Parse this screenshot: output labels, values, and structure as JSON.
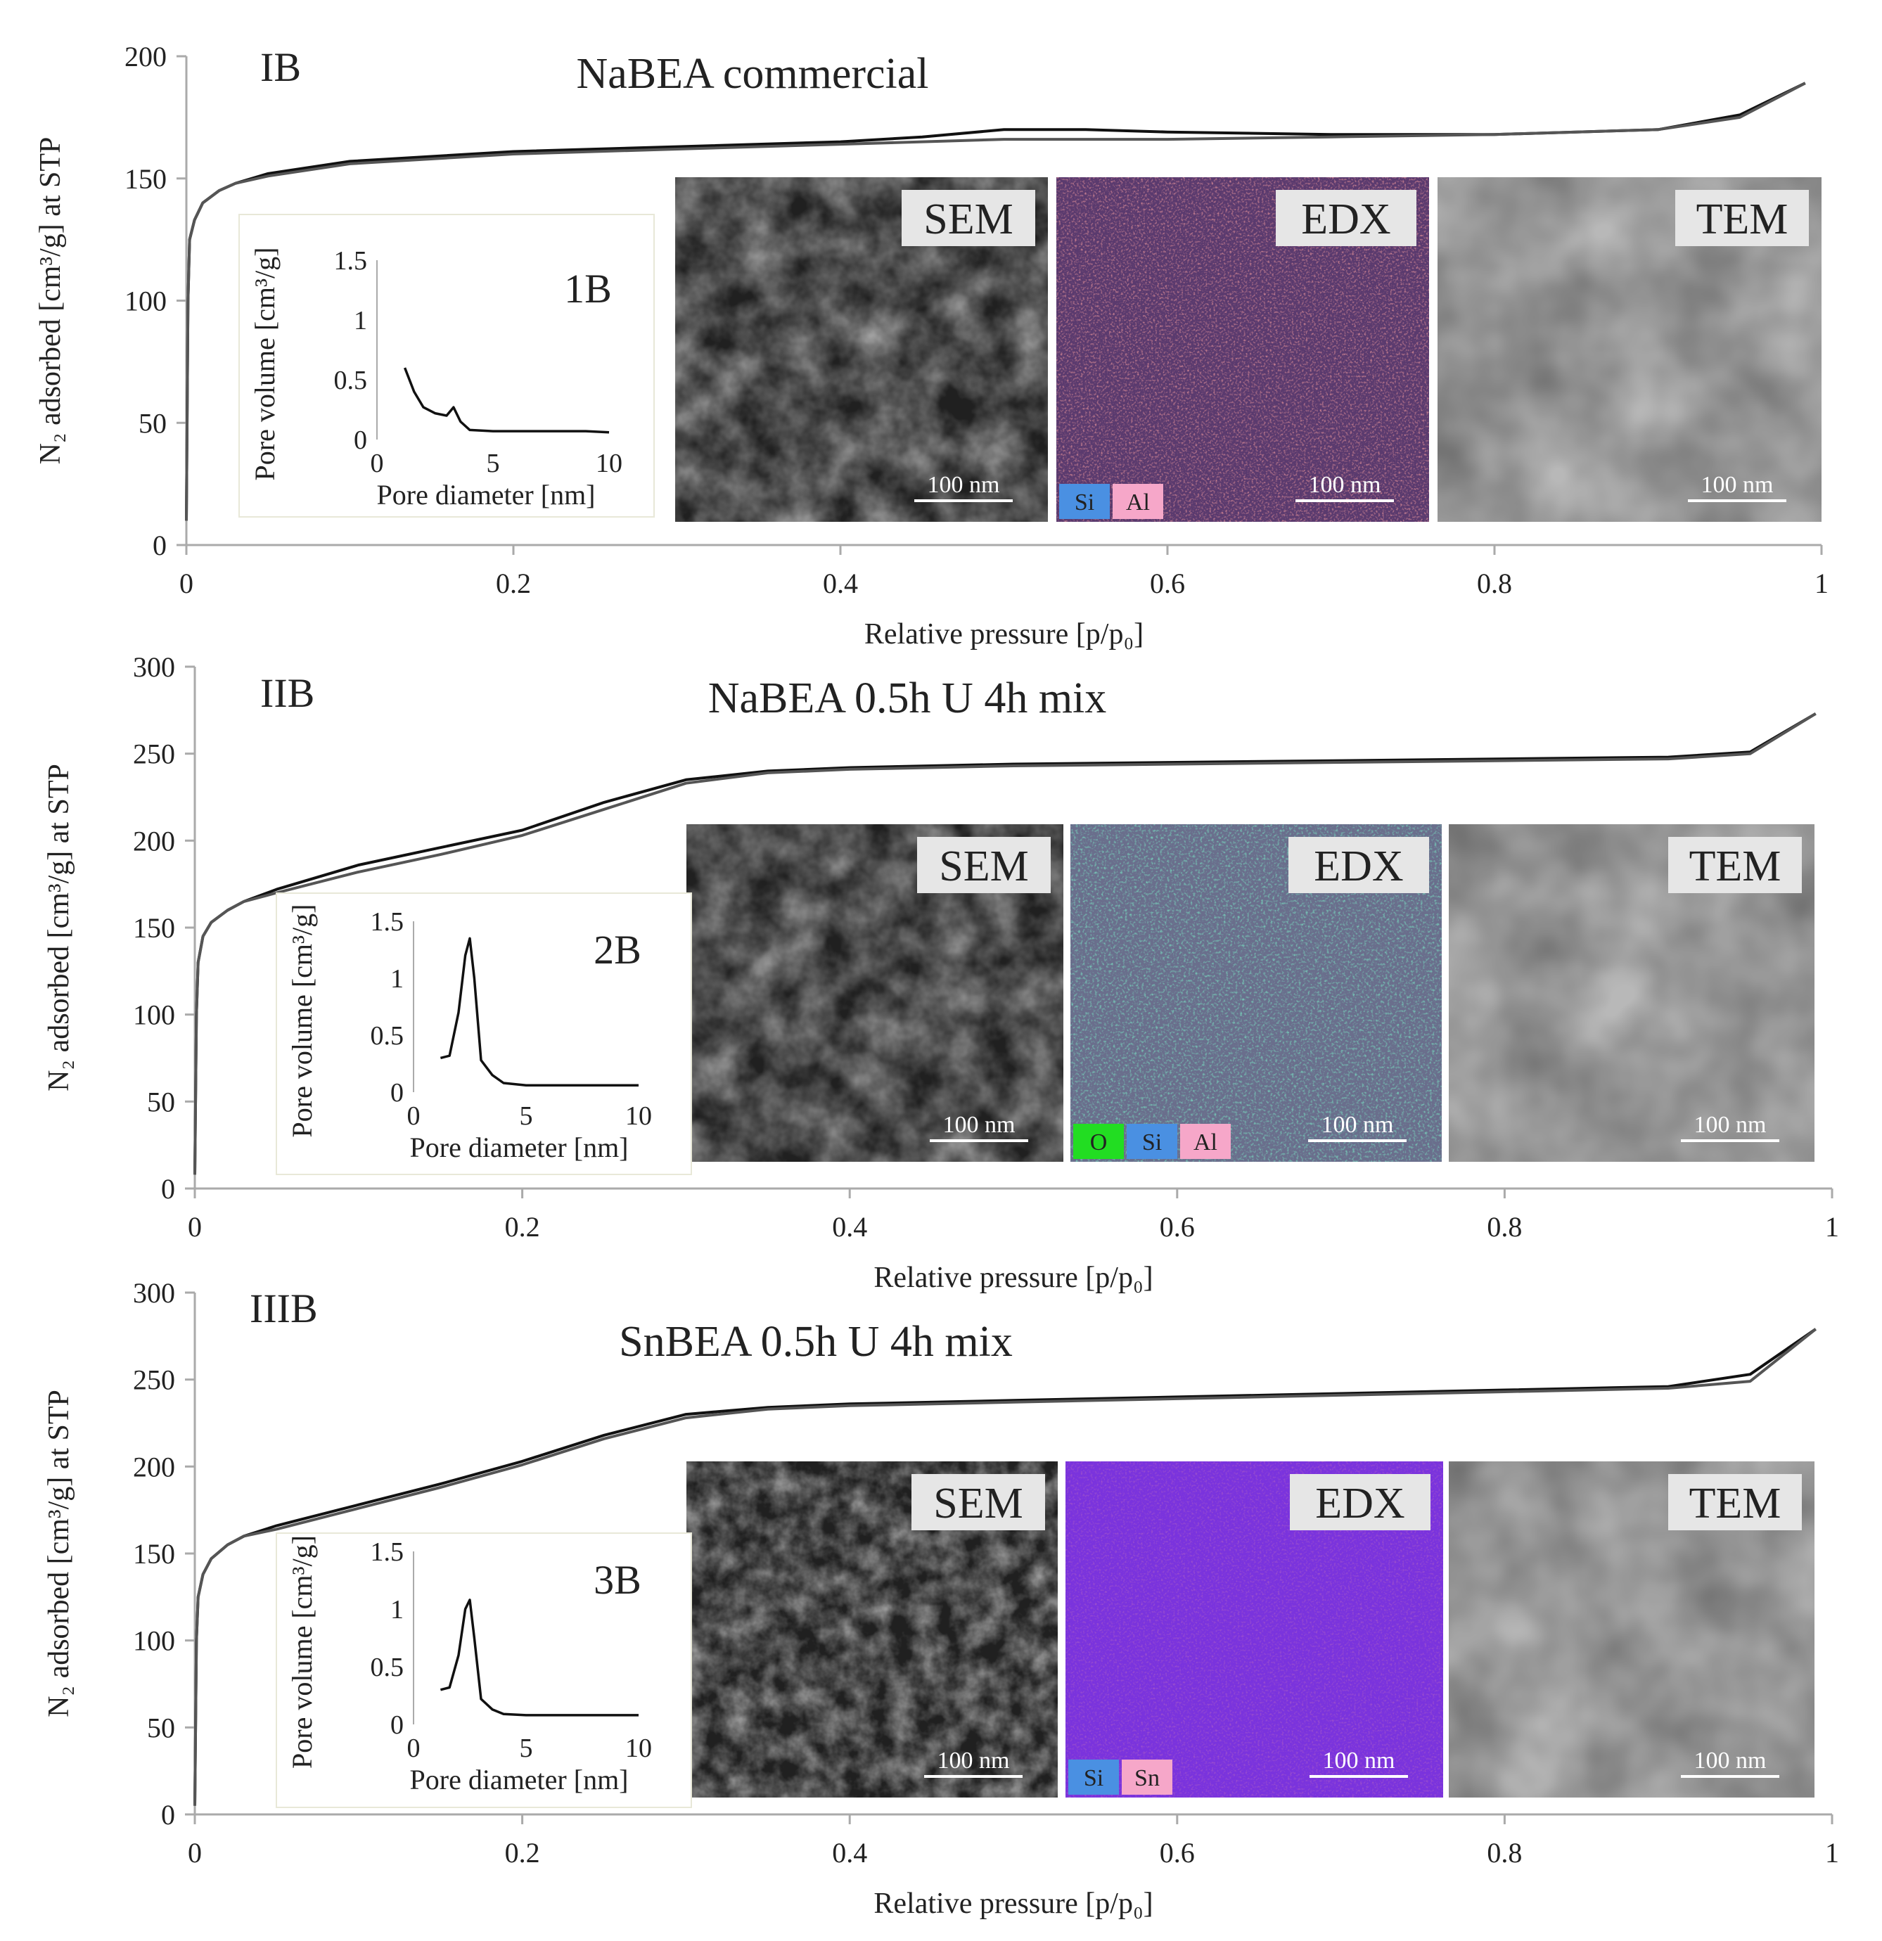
{
  "chart_data": [
    {
      "type": "line",
      "panel_id": "IB",
      "title": "NaBEA commercial",
      "xlabel": "Relative pressure [p/p₀]",
      "ylabel": "N₂ adsorbed [cm³/g] at STP",
      "xlim": [
        0,
        1
      ],
      "ylim": [
        0,
        200
      ],
      "xticks": [
        "0",
        "0.2",
        "0.4",
        "0.6",
        "0.8",
        "1"
      ],
      "yticks": [
        "0",
        "50",
        "100",
        "150",
        "200"
      ],
      "series": [
        {
          "x": [
            0.0,
            0.001,
            0.002,
            0.005,
            0.01,
            0.02,
            0.03,
            0.05,
            0.1,
            0.2,
            0.3,
            0.4,
            0.45,
            0.5,
            0.55,
            0.6,
            0.7,
            0.8,
            0.9,
            0.95,
            0.99
          ],
          "y": [
            10,
            100,
            125,
            133,
            140,
            145,
            148,
            152,
            157,
            161,
            163,
            165,
            167,
            170,
            170,
            169,
            168,
            168,
            170,
            176,
            189
          ]
        },
        {
          "x": [
            0.0,
            0.001,
            0.002,
            0.005,
            0.01,
            0.02,
            0.03,
            0.05,
            0.1,
            0.2,
            0.3,
            0.4,
            0.45,
            0.5,
            0.55,
            0.6,
            0.7,
            0.8,
            0.9,
            0.95,
            0.99
          ],
          "y": [
            10,
            100,
            125,
            133,
            140,
            145,
            148,
            151,
            156,
            160,
            162,
            164,
            165,
            166,
            166,
            166,
            167,
            168,
            170,
            175,
            189
          ]
        }
      ],
      "inset": {
        "id": "1B",
        "xlabel": "Pore diameter [nm]",
        "ylabel": "Pore volume [cm³/g]",
        "xlim": [
          0,
          10
        ],
        "ylim": [
          0,
          1.5
        ],
        "xticks": [
          "0",
          "5",
          "10"
        ],
        "yticks": [
          "0",
          "0.5",
          "1",
          "1.5"
        ],
        "x": [
          1.2,
          1.6,
          2.0,
          2.5,
          3.0,
          3.3,
          3.6,
          4.0,
          5,
          6,
          7,
          8,
          9,
          10
        ],
        "y": [
          0.6,
          0.4,
          0.27,
          0.22,
          0.2,
          0.27,
          0.15,
          0.08,
          0.07,
          0.07,
          0.07,
          0.07,
          0.07,
          0.06
        ]
      },
      "images": [
        {
          "label": "SEM",
          "scalebar": "100 nm",
          "chips": []
        },
        {
          "label": "EDX",
          "scalebar": "100 nm",
          "chips": [
            {
              "text": "Si",
              "color": "#4a90e2"
            },
            {
              "text": "Al",
              "color": "#f6a7c9"
            }
          ]
        },
        {
          "label": "TEM",
          "scalebar": "100 nm",
          "chips": []
        }
      ]
    },
    {
      "type": "line",
      "panel_id": "IIB",
      "title": "NaBEA 0.5h U 4h mix",
      "xlabel": "Relative pressure [p/p₀]",
      "ylabel": "N₂ adsorbed [cm³/g] at STP",
      "xlim": [
        0,
        1
      ],
      "ylim": [
        0,
        300
      ],
      "xticks": [
        "0",
        "0.2",
        "0.4",
        "0.6",
        "0.8",
        "1"
      ],
      "yticks": [
        "0",
        "50",
        "100",
        "150",
        "200",
        "250",
        "300"
      ],
      "series": [
        {
          "x": [
            0.0,
            0.001,
            0.002,
            0.005,
            0.01,
            0.02,
            0.03,
            0.05,
            0.1,
            0.15,
            0.2,
            0.25,
            0.3,
            0.35,
            0.4,
            0.5,
            0.6,
            0.7,
            0.8,
            0.9,
            0.95,
            0.99
          ],
          "y": [
            8,
            100,
            130,
            145,
            153,
            160,
            165,
            172,
            186,
            196,
            206,
            222,
            235,
            240,
            242,
            244,
            245,
            246,
            247,
            248,
            251,
            273
          ]
        },
        {
          "x": [
            0.0,
            0.001,
            0.002,
            0.005,
            0.01,
            0.02,
            0.03,
            0.05,
            0.1,
            0.15,
            0.2,
            0.25,
            0.3,
            0.35,
            0.4,
            0.5,
            0.6,
            0.7,
            0.8,
            0.9,
            0.95,
            0.99
          ],
          "y": [
            8,
            100,
            130,
            145,
            153,
            160,
            165,
            170,
            182,
            192,
            203,
            218,
            233,
            239,
            241,
            243,
            244,
            245,
            246,
            247,
            250,
            273
          ]
        }
      ],
      "inset": {
        "id": "2B",
        "xlabel": "Pore diameter [nm]",
        "ylabel": "Pore volume [cm³/g]",
        "xlim": [
          0,
          10
        ],
        "ylim": [
          0,
          1.5
        ],
        "xticks": [
          "0",
          "5",
          "10"
        ],
        "yticks": [
          "0",
          "0.5",
          "1",
          "1.5"
        ],
        "x": [
          1.2,
          1.6,
          2.0,
          2.3,
          2.5,
          2.7,
          3.0,
          3.5,
          4.0,
          5,
          6,
          8,
          10
        ],
        "y": [
          0.3,
          0.32,
          0.7,
          1.2,
          1.35,
          1.0,
          0.28,
          0.15,
          0.08,
          0.06,
          0.06,
          0.06,
          0.06
        ]
      },
      "images": [
        {
          "label": "SEM",
          "scalebar": "100 nm",
          "chips": []
        },
        {
          "label": "EDX",
          "scalebar": "100 nm",
          "chips": [
            {
              "text": "O",
              "color": "#22dd22"
            },
            {
              "text": "Si",
              "color": "#4a90e2"
            },
            {
              "text": "Al",
              "color": "#f6a7c9"
            }
          ]
        },
        {
          "label": "TEM",
          "scalebar": "100 nm",
          "chips": []
        }
      ]
    },
    {
      "type": "line",
      "panel_id": "IIIB",
      "title": "SnBEA 0.5h U 4h mix",
      "xlabel": "Relative pressure [p/p₀]",
      "ylabel": "N₂ adsorbed [cm³/g] at STP",
      "xlim": [
        0,
        1
      ],
      "ylim": [
        0,
        300
      ],
      "xticks": [
        "0",
        "0.2",
        "0.4",
        "0.6",
        "0.8",
        "1"
      ],
      "yticks": [
        "0",
        "50",
        "100",
        "150",
        "200",
        "250",
        "300"
      ],
      "series": [
        {
          "x": [
            0.0,
            0.001,
            0.002,
            0.005,
            0.01,
            0.02,
            0.03,
            0.05,
            0.1,
            0.15,
            0.2,
            0.25,
            0.3,
            0.35,
            0.4,
            0.5,
            0.6,
            0.7,
            0.8,
            0.9,
            0.95,
            0.99
          ],
          "y": [
            5,
            100,
            125,
            138,
            147,
            155,
            160,
            166,
            178,
            190,
            203,
            218,
            230,
            234,
            236,
            238,
            240,
            242,
            244,
            246,
            253,
            279
          ]
        },
        {
          "x": [
            0.0,
            0.001,
            0.002,
            0.005,
            0.01,
            0.02,
            0.03,
            0.05,
            0.1,
            0.15,
            0.2,
            0.25,
            0.3,
            0.35,
            0.4,
            0.5,
            0.6,
            0.7,
            0.8,
            0.9,
            0.95,
            0.99
          ],
          "y": [
            5,
            100,
            125,
            138,
            147,
            155,
            160,
            164,
            176,
            188,
            201,
            216,
            228,
            233,
            235,
            237,
            239,
            241,
            243,
            245,
            249,
            279
          ]
        }
      ],
      "inset": {
        "id": "3B",
        "xlabel": "Pore diameter [nm]",
        "ylabel": "Pore volume [cm³/g]",
        "xlim": [
          0,
          10
        ],
        "ylim": [
          0,
          1.5
        ],
        "xticks": [
          "0",
          "5",
          "10"
        ],
        "yticks": [
          "0",
          "0.5",
          "1",
          "1.5"
        ],
        "x": [
          1.2,
          1.6,
          2.0,
          2.3,
          2.5,
          2.7,
          3.0,
          3.5,
          4.0,
          5,
          6,
          8,
          10
        ],
        "y": [
          0.3,
          0.32,
          0.6,
          1.0,
          1.08,
          0.75,
          0.22,
          0.13,
          0.09,
          0.08,
          0.08,
          0.08,
          0.08
        ]
      },
      "images": [
        {
          "label": "SEM",
          "scalebar": "100 nm",
          "chips": []
        },
        {
          "label": "EDX",
          "scalebar": "100 nm",
          "chips": [
            {
              "text": "Si",
              "color": "#4a90e2"
            },
            {
              "text": "Sn",
              "color": "#f6a7c9"
            }
          ]
        },
        {
          "label": "TEM",
          "scalebar": "100 nm",
          "chips": []
        }
      ]
    }
  ]
}
